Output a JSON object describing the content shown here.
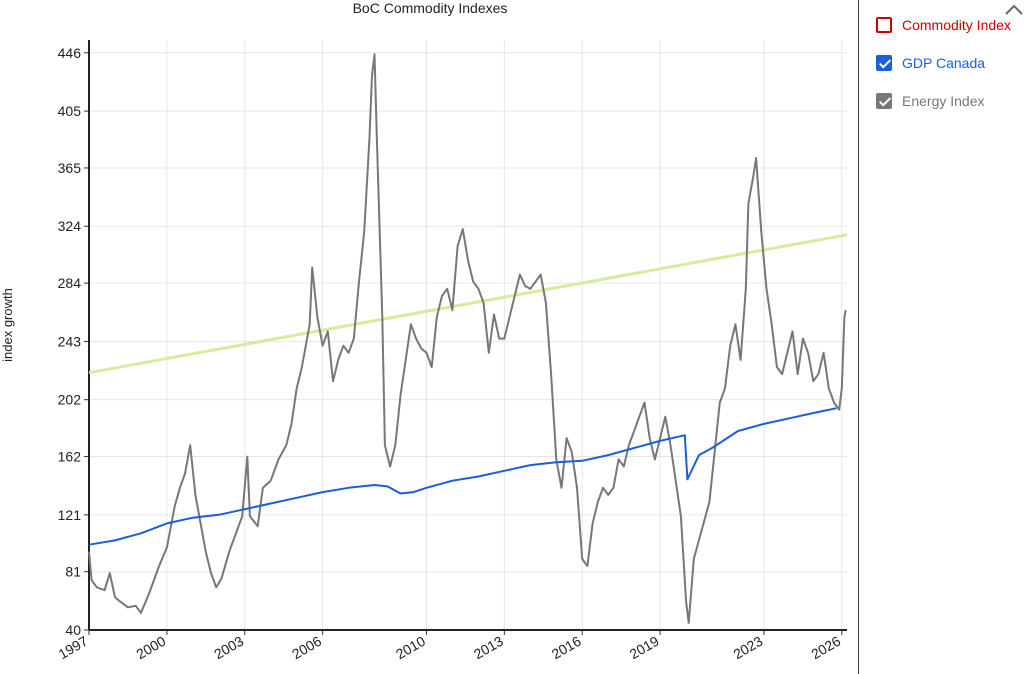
{
  "chart_data": {
    "type": "line",
    "title": "BoC Commodity Indexes",
    "xlabel": "",
    "ylabel": "index growth",
    "xlim": [
      1997,
      2026.2
    ],
    "ylim": [
      40,
      455
    ],
    "x_ticks": [
      "1997",
      "2000",
      "2003",
      "2006",
      "2010",
      "2013",
      "2016",
      "2019",
      "2023",
      "2026"
    ],
    "y_ticks": [
      "40",
      "81",
      "121",
      "162",
      "202",
      "243",
      "284",
      "324",
      "365",
      "405",
      "446"
    ],
    "grid": true,
    "legend_position": "right",
    "series": [
      {
        "name": "Commodity Index",
        "color": "#cc0000",
        "visible": false,
        "points": []
      },
      {
        "name": "GDP Canada",
        "color": "#1a5fd9",
        "visible": true,
        "points": [
          [
            1997,
            100
          ],
          [
            1998,
            103
          ],
          [
            1999,
            108
          ],
          [
            2000,
            115
          ],
          [
            2001,
            119
          ],
          [
            2002,
            121
          ],
          [
            2003,
            125
          ],
          [
            2004,
            129
          ],
          [
            2005,
            133
          ],
          [
            2006,
            137
          ],
          [
            2007,
            140
          ],
          [
            2008,
            142
          ],
          [
            2008.5,
            141
          ],
          [
            2009,
            136
          ],
          [
            2009.5,
            137
          ],
          [
            2010,
            140
          ],
          [
            2011,
            145
          ],
          [
            2012,
            148
          ],
          [
            2013,
            152
          ],
          [
            2014,
            156
          ],
          [
            2015,
            158
          ],
          [
            2016,
            159
          ],
          [
            2017,
            163
          ],
          [
            2018,
            168
          ],
          [
            2019,
            173
          ],
          [
            2019.95,
            177
          ],
          [
            2020.05,
            146
          ],
          [
            2020.5,
            163
          ],
          [
            2021,
            168
          ],
          [
            2022,
            180
          ],
          [
            2023,
            185
          ],
          [
            2024,
            189
          ],
          [
            2025,
            193
          ],
          [
            2025.8,
            196
          ]
        ]
      },
      {
        "name": "Energy Index",
        "color": "#777777",
        "visible": true,
        "points": [
          [
            1997,
            95
          ],
          [
            1997.1,
            75
          ],
          [
            1997.3,
            70
          ],
          [
            1997.6,
            68
          ],
          [
            1997.8,
            80
          ],
          [
            1998,
            63
          ],
          [
            1998.2,
            60
          ],
          [
            1998.5,
            56
          ],
          [
            1998.8,
            57
          ],
          [
            1999,
            52
          ],
          [
            1999.3,
            65
          ],
          [
            1999.7,
            85
          ],
          [
            2000,
            98
          ],
          [
            2000.3,
            127
          ],
          [
            2000.5,
            140
          ],
          [
            2000.7,
            150
          ],
          [
            2000.9,
            170
          ],
          [
            2001.1,
            135
          ],
          [
            2001.3,
            115
          ],
          [
            2001.5,
            95
          ],
          [
            2001.7,
            80
          ],
          [
            2001.9,
            70
          ],
          [
            2002.1,
            76
          ],
          [
            2002.4,
            95
          ],
          [
            2002.7,
            110
          ],
          [
            2002.9,
            120
          ],
          [
            2003.1,
            162
          ],
          [
            2003.2,
            120
          ],
          [
            2003.5,
            113
          ],
          [
            2003.7,
            140
          ],
          [
            2004,
            145
          ],
          [
            2004.3,
            160
          ],
          [
            2004.6,
            170
          ],
          [
            2004.8,
            185
          ],
          [
            2005,
            210
          ],
          [
            2005.2,
            225
          ],
          [
            2005.5,
            255
          ],
          [
            2005.6,
            295
          ],
          [
            2005.8,
            260
          ],
          [
            2006,
            240
          ],
          [
            2006.2,
            250
          ],
          [
            2006.4,
            215
          ],
          [
            2006.6,
            230
          ],
          [
            2006.8,
            240
          ],
          [
            2007,
            235
          ],
          [
            2007.2,
            245
          ],
          [
            2007.4,
            285
          ],
          [
            2007.6,
            320
          ],
          [
            2007.8,
            385
          ],
          [
            2007.9,
            430
          ],
          [
            2008,
            445
          ],
          [
            2008.1,
            380
          ],
          [
            2008.3,
            260
          ],
          [
            2008.4,
            170
          ],
          [
            2008.6,
            155
          ],
          [
            2008.8,
            170
          ],
          [
            2009,
            205
          ],
          [
            2009.2,
            230
          ],
          [
            2009.4,
            255
          ],
          [
            2009.6,
            245
          ],
          [
            2009.8,
            238
          ],
          [
            2010,
            235
          ],
          [
            2010.2,
            225
          ],
          [
            2010.4,
            260
          ],
          [
            2010.6,
            275
          ],
          [
            2010.8,
            280
          ],
          [
            2011,
            265
          ],
          [
            2011.2,
            310
          ],
          [
            2011.4,
            322
          ],
          [
            2011.6,
            300
          ],
          [
            2011.8,
            285
          ],
          [
            2012,
            280
          ],
          [
            2012.2,
            270
          ],
          [
            2012.4,
            235
          ],
          [
            2012.6,
            262
          ],
          [
            2012.8,
            245
          ],
          [
            2013,
            245
          ],
          [
            2013.2,
            260
          ],
          [
            2013.4,
            275
          ],
          [
            2013.6,
            290
          ],
          [
            2013.8,
            282
          ],
          [
            2014,
            280
          ],
          [
            2014.2,
            285
          ],
          [
            2014.4,
            290
          ],
          [
            2014.6,
            270
          ],
          [
            2014.8,
            220
          ],
          [
            2015,
            160
          ],
          [
            2015.2,
            140
          ],
          [
            2015.4,
            175
          ],
          [
            2015.6,
            165
          ],
          [
            2015.8,
            140
          ],
          [
            2016,
            90
          ],
          [
            2016.2,
            85
          ],
          [
            2016.4,
            115
          ],
          [
            2016.6,
            130
          ],
          [
            2016.8,
            140
          ],
          [
            2017,
            135
          ],
          [
            2017.2,
            140
          ],
          [
            2017.4,
            160
          ],
          [
            2017.6,
            155
          ],
          [
            2017.8,
            170
          ],
          [
            2018,
            180
          ],
          [
            2018.2,
            190
          ],
          [
            2018.4,
            200
          ],
          [
            2018.6,
            175
          ],
          [
            2018.8,
            160
          ],
          [
            2019,
            175
          ],
          [
            2019.2,
            190
          ],
          [
            2019.4,
            170
          ],
          [
            2019.6,
            145
          ],
          [
            2019.8,
            120
          ],
          [
            2020,
            60
          ],
          [
            2020.1,
            45
          ],
          [
            2020.3,
            90
          ],
          [
            2020.6,
            110
          ],
          [
            2020.9,
            130
          ],
          [
            2021.1,
            165
          ],
          [
            2021.3,
            200
          ],
          [
            2021.5,
            210
          ],
          [
            2021.7,
            240
          ],
          [
            2021.9,
            255
          ],
          [
            2022.1,
            230
          ],
          [
            2022.3,
            280
          ],
          [
            2022.4,
            340
          ],
          [
            2022.6,
            360
          ],
          [
            2022.7,
            372
          ],
          [
            2022.9,
            320
          ],
          [
            2023.1,
            280
          ],
          [
            2023.3,
            255
          ],
          [
            2023.5,
            225
          ],
          [
            2023.7,
            220
          ],
          [
            2023.9,
            235
          ],
          [
            2024.1,
            250
          ],
          [
            2024.3,
            220
          ],
          [
            2024.5,
            245
          ],
          [
            2024.7,
            235
          ],
          [
            2024.9,
            215
          ],
          [
            2025.1,
            220
          ],
          [
            2025.3,
            235
          ],
          [
            2025.5,
            210
          ],
          [
            2025.7,
            200
          ],
          [
            2025.9,
            195
          ],
          [
            2026.0,
            210
          ],
          [
            2026.1,
            260
          ],
          [
            2026.15,
            265
          ]
        ]
      },
      {
        "name": "",
        "color": "#d4ed9c",
        "visible": true,
        "points": [
          [
            1997,
            221
          ],
          [
            2026.2,
            318
          ]
        ]
      }
    ]
  },
  "legend": {
    "items": [
      {
        "label": "Commodity Index",
        "checked": false,
        "color": "#cc0000"
      },
      {
        "label": "GDP Canada",
        "checked": true,
        "color": "#1a5fd9"
      },
      {
        "label": "Energy Index",
        "checked": true,
        "color": "#777777"
      }
    ]
  },
  "icons": {
    "collapse": "chevron-up-icon"
  }
}
